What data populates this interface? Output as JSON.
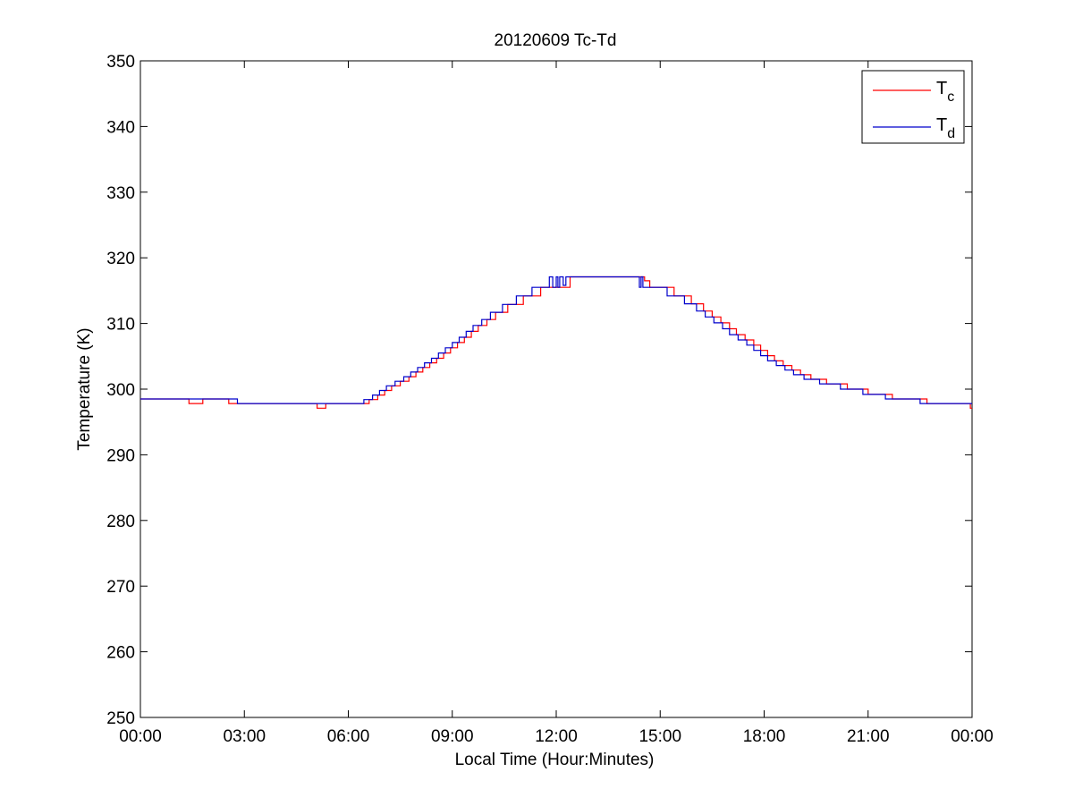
{
  "chart_data": {
    "type": "line",
    "title": "20120609 Tc-Td",
    "xlabel": "Local Time (Hour:Minutes)",
    "ylabel": "Temperature (K)",
    "xlim": [
      0,
      24
    ],
    "ylim": [
      250,
      350
    ],
    "grid": false,
    "legend_position": "top-right",
    "x_ticks": [
      {
        "value": 0,
        "label": "00:00"
      },
      {
        "value": 3,
        "label": "03:00"
      },
      {
        "value": 6,
        "label": "06:00"
      },
      {
        "value": 9,
        "label": "09:00"
      },
      {
        "value": 12,
        "label": "12:00"
      },
      {
        "value": 15,
        "label": "15:00"
      },
      {
        "value": 18,
        "label": "18:00"
      },
      {
        "value": 21,
        "label": "21:00"
      },
      {
        "value": 24,
        "label": "00:00"
      }
    ],
    "y_ticks": [
      {
        "value": 250,
        "label": "250"
      },
      {
        "value": 260,
        "label": "260"
      },
      {
        "value": 270,
        "label": "270"
      },
      {
        "value": 280,
        "label": "280"
      },
      {
        "value": 290,
        "label": "290"
      },
      {
        "value": 300,
        "label": "300"
      },
      {
        "value": 310,
        "label": "310"
      },
      {
        "value": 320,
        "label": "320"
      },
      {
        "value": 330,
        "label": "330"
      },
      {
        "value": 340,
        "label": "340"
      },
      {
        "value": 350,
        "label": "350"
      }
    ],
    "series": [
      {
        "name": "T",
        "subscript": "c",
        "color": "#ff0000",
        "points": [
          [
            0,
            298.5
          ],
          [
            1.4,
            298.5
          ],
          [
            1.4,
            297.8
          ],
          [
            1.8,
            297.8
          ],
          [
            1.8,
            298.5
          ],
          [
            2.55,
            298.5
          ],
          [
            2.55,
            297.8
          ],
          [
            2.8,
            297.8
          ],
          [
            5.1,
            297.8
          ],
          [
            5.1,
            297.1
          ],
          [
            5.35,
            297.1
          ],
          [
            5.35,
            297.8
          ],
          [
            6.6,
            297.8
          ],
          [
            6.6,
            298.4
          ],
          [
            6.85,
            298.4
          ],
          [
            6.85,
            299.1
          ],
          [
            7.05,
            299.1
          ],
          [
            7.05,
            299.8
          ],
          [
            7.25,
            299.8
          ],
          [
            7.25,
            300.5
          ],
          [
            7.5,
            300.5
          ],
          [
            7.5,
            301.2
          ],
          [
            7.75,
            301.2
          ],
          [
            7.75,
            301.9
          ],
          [
            7.95,
            301.9
          ],
          [
            7.95,
            302.6
          ],
          [
            8.15,
            302.6
          ],
          [
            8.15,
            303.3
          ],
          [
            8.35,
            303.3
          ],
          [
            8.35,
            304.0
          ],
          [
            8.55,
            304.0
          ],
          [
            8.55,
            304.7
          ],
          [
            8.75,
            304.7
          ],
          [
            8.75,
            305.5
          ],
          [
            8.95,
            305.5
          ],
          [
            8.95,
            306.3
          ],
          [
            9.15,
            306.3
          ],
          [
            9.15,
            307.1
          ],
          [
            9.35,
            307.1
          ],
          [
            9.35,
            307.9
          ],
          [
            9.55,
            307.9
          ],
          [
            9.55,
            308.8
          ],
          [
            9.75,
            308.8
          ],
          [
            9.75,
            309.7
          ],
          [
            10.0,
            309.7
          ],
          [
            10.0,
            310.6
          ],
          [
            10.25,
            310.6
          ],
          [
            10.25,
            311.7
          ],
          [
            10.6,
            311.7
          ],
          [
            10.6,
            312.9
          ],
          [
            11.05,
            312.9
          ],
          [
            11.05,
            314.2
          ],
          [
            11.55,
            314.2
          ],
          [
            11.55,
            315.5
          ],
          [
            12.4,
            315.5
          ],
          [
            12.4,
            317.1
          ],
          [
            14.55,
            317.1
          ],
          [
            14.55,
            316.5
          ],
          [
            14.7,
            316.5
          ],
          [
            14.7,
            315.5
          ],
          [
            15.4,
            315.5
          ],
          [
            15.4,
            314.2
          ],
          [
            15.9,
            314.2
          ],
          [
            15.9,
            313.0
          ],
          [
            16.25,
            313.0
          ],
          [
            16.25,
            311.9
          ],
          [
            16.5,
            311.9
          ],
          [
            16.5,
            311.0
          ],
          [
            16.75,
            311.0
          ],
          [
            16.75,
            310.1
          ],
          [
            17.0,
            310.1
          ],
          [
            17.0,
            309.2
          ],
          [
            17.2,
            309.2
          ],
          [
            17.2,
            308.3
          ],
          [
            17.45,
            308.3
          ],
          [
            17.45,
            307.5
          ],
          [
            17.7,
            307.5
          ],
          [
            17.7,
            306.7
          ],
          [
            17.9,
            306.7
          ],
          [
            17.9,
            305.9
          ],
          [
            18.1,
            305.9
          ],
          [
            18.1,
            305.1
          ],
          [
            18.3,
            305.1
          ],
          [
            18.3,
            304.3
          ],
          [
            18.55,
            304.3
          ],
          [
            18.55,
            303.6
          ],
          [
            18.8,
            303.6
          ],
          [
            18.8,
            302.9
          ],
          [
            19.05,
            302.9
          ],
          [
            19.05,
            302.2
          ],
          [
            19.35,
            302.2
          ],
          [
            19.35,
            301.5
          ],
          [
            19.8,
            301.5
          ],
          [
            19.8,
            300.8
          ],
          [
            20.4,
            300.8
          ],
          [
            20.4,
            300.0
          ],
          [
            21.0,
            300.0
          ],
          [
            21.0,
            299.2
          ],
          [
            21.7,
            299.2
          ],
          [
            21.7,
            298.5
          ],
          [
            22.7,
            298.5
          ],
          [
            22.7,
            297.8
          ],
          [
            23.95,
            297.8
          ],
          [
            23.95,
            297.1
          ],
          [
            24,
            297.1
          ]
        ]
      },
      {
        "name": "T",
        "subscript": "d",
        "color": "#0000cc",
        "points": [
          [
            0,
            298.5
          ],
          [
            2.8,
            298.5
          ],
          [
            2.8,
            297.8
          ],
          [
            6.45,
            297.8
          ],
          [
            6.45,
            298.4
          ],
          [
            6.7,
            298.4
          ],
          [
            6.7,
            299.1
          ],
          [
            6.9,
            299.1
          ],
          [
            6.9,
            299.8
          ],
          [
            7.1,
            299.8
          ],
          [
            7.1,
            300.5
          ],
          [
            7.35,
            300.5
          ],
          [
            7.35,
            301.2
          ],
          [
            7.6,
            301.2
          ],
          [
            7.6,
            301.9
          ],
          [
            7.8,
            301.9
          ],
          [
            7.8,
            302.6
          ],
          [
            8.0,
            302.6
          ],
          [
            8.0,
            303.3
          ],
          [
            8.2,
            303.3
          ],
          [
            8.2,
            304.0
          ],
          [
            8.4,
            304.0
          ],
          [
            8.4,
            304.7
          ],
          [
            8.6,
            304.7
          ],
          [
            8.6,
            305.5
          ],
          [
            8.8,
            305.5
          ],
          [
            8.8,
            306.3
          ],
          [
            9.0,
            306.3
          ],
          [
            9.0,
            307.1
          ],
          [
            9.2,
            307.1
          ],
          [
            9.2,
            307.9
          ],
          [
            9.4,
            307.9
          ],
          [
            9.4,
            308.8
          ],
          [
            9.6,
            308.8
          ],
          [
            9.6,
            309.7
          ],
          [
            9.85,
            309.7
          ],
          [
            9.85,
            310.6
          ],
          [
            10.1,
            310.6
          ],
          [
            10.1,
            311.7
          ],
          [
            10.45,
            311.7
          ],
          [
            10.45,
            312.9
          ],
          [
            10.85,
            312.9
          ],
          [
            10.85,
            314.2
          ],
          [
            11.3,
            314.2
          ],
          [
            11.3,
            315.5
          ],
          [
            11.8,
            315.5
          ],
          [
            11.8,
            317.1
          ],
          [
            11.9,
            317.1
          ],
          [
            11.9,
            315.5
          ],
          [
            12.0,
            315.5
          ],
          [
            12.0,
            317.1
          ],
          [
            12.05,
            317.1
          ],
          [
            12.05,
            315.5
          ],
          [
            12.1,
            315.5
          ],
          [
            12.1,
            317.1
          ],
          [
            12.2,
            317.1
          ],
          [
            12.2,
            315.8
          ],
          [
            12.28,
            315.8
          ],
          [
            12.28,
            317.1
          ],
          [
            14.4,
            317.1
          ],
          [
            14.4,
            315.5
          ],
          [
            14.45,
            315.5
          ],
          [
            14.45,
            317.1
          ],
          [
            14.5,
            317.1
          ],
          [
            14.5,
            315.5
          ],
          [
            15.2,
            315.5
          ],
          [
            15.2,
            314.2
          ],
          [
            15.7,
            314.2
          ],
          [
            15.7,
            313.0
          ],
          [
            16.05,
            313.0
          ],
          [
            16.05,
            311.9
          ],
          [
            16.3,
            311.9
          ],
          [
            16.3,
            311.0
          ],
          [
            16.55,
            311.0
          ],
          [
            16.55,
            310.1
          ],
          [
            16.8,
            310.1
          ],
          [
            16.8,
            309.2
          ],
          [
            17.0,
            309.2
          ],
          [
            17.0,
            308.3
          ],
          [
            17.25,
            308.3
          ],
          [
            17.25,
            307.5
          ],
          [
            17.5,
            307.5
          ],
          [
            17.5,
            306.7
          ],
          [
            17.7,
            306.7
          ],
          [
            17.7,
            305.9
          ],
          [
            17.9,
            305.9
          ],
          [
            17.9,
            305.1
          ],
          [
            18.1,
            305.1
          ],
          [
            18.1,
            304.3
          ],
          [
            18.35,
            304.3
          ],
          [
            18.35,
            303.6
          ],
          [
            18.6,
            303.6
          ],
          [
            18.6,
            302.9
          ],
          [
            18.85,
            302.9
          ],
          [
            18.85,
            302.2
          ],
          [
            19.15,
            302.2
          ],
          [
            19.15,
            301.5
          ],
          [
            19.6,
            301.5
          ],
          [
            19.6,
            300.8
          ],
          [
            20.2,
            300.8
          ],
          [
            20.2,
            300.0
          ],
          [
            20.85,
            300.0
          ],
          [
            20.85,
            299.2
          ],
          [
            21.5,
            299.2
          ],
          [
            21.5,
            298.5
          ],
          [
            22.5,
            298.5
          ],
          [
            22.5,
            297.8
          ],
          [
            24,
            297.8
          ]
        ]
      }
    ]
  }
}
